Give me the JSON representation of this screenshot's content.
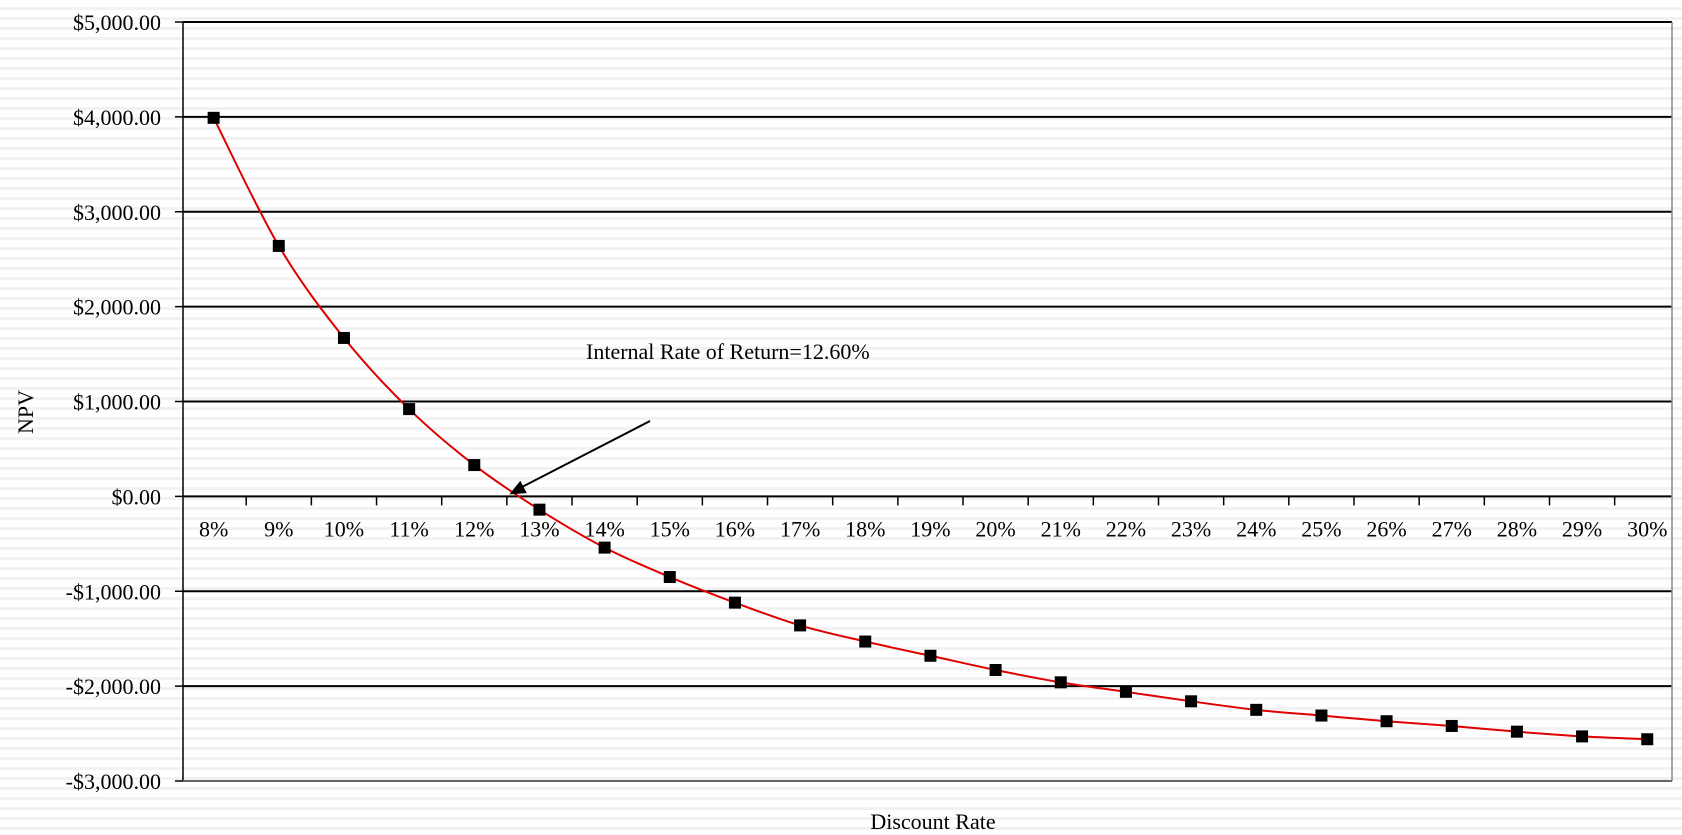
{
  "chart_data": {
    "type": "line",
    "title": "",
    "xlabel": "Discount Rate",
    "ylabel": "NPV",
    "ylim": [
      -3000,
      5000
    ],
    "ytick_values": [
      5000,
      4000,
      3000,
      2000,
      1000,
      0,
      -1000,
      -2000,
      -3000
    ],
    "ytick_labels": [
      "$5,000.00",
      "$4,000.00",
      "$3,000.00",
      "$2,000.00",
      "$1,000.00",
      "$0.00",
      "-$1,000.00",
      "-$2,000.00",
      "-$3,000.00"
    ],
    "categories": [
      "8%",
      "9%",
      "10%",
      "11%",
      "12%",
      "13%",
      "14%",
      "15%",
      "16%",
      "17%",
      "18%",
      "19%",
      "20%",
      "21%",
      "22%",
      "23%",
      "24%",
      "25%",
      "26%",
      "27%",
      "28%",
      "29%",
      "30%"
    ],
    "series": [
      {
        "values": [
          3990,
          2640,
          1670,
          920,
          330,
          -140,
          -540,
          -850,
          -1120,
          -1360,
          -1530,
          -1680,
          -1830,
          -1960,
          -2060,
          -2160,
          -2250,
          -2310,
          -2370,
          -2420,
          -2480,
          -2530,
          -2560
        ],
        "line_color": "#e00000",
        "marker_color": "#000000",
        "marker": "square"
      }
    ],
    "annotation": {
      "text": "Internal Rate of Return=12.60%",
      "irr_value": 12.6
    },
    "grid": true,
    "legend": "none"
  }
}
